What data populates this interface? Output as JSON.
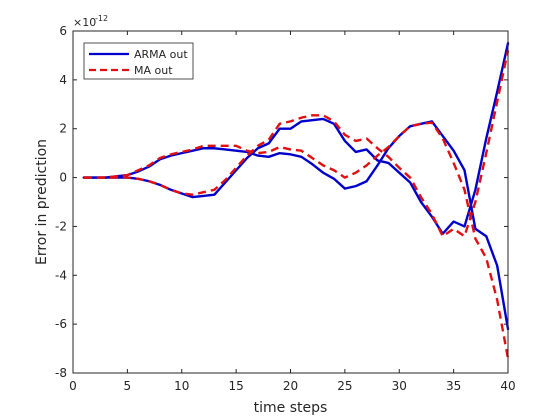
{
  "chart_data": {
    "type": "line",
    "xlabel": "time steps",
    "ylabel": "Error in prediction",
    "y_multiplier": "×10",
    "y_exponent": "-12",
    "xlim": [
      0,
      40
    ],
    "ylim": [
      -8,
      6
    ],
    "x_ticks": [
      0,
      5,
      10,
      15,
      20,
      25,
      30,
      35,
      40
    ],
    "y_ticks": [
      -8,
      -6,
      -4,
      -2,
      0,
      2,
      4,
      6
    ],
    "legend": {
      "placement": "top-left",
      "entries": [
        "ARMA out",
        "MA out"
      ]
    },
    "series": [
      {
        "name": "ARMA out",
        "color": "#0000cc",
        "style": "solid",
        "paths": [
          {
            "x": [
              1,
              2,
              3,
              4,
              5,
              6,
              7,
              8,
              9,
              10,
              11,
              12,
              13,
              14,
              15,
              16,
              17,
              18,
              19,
              20,
              21,
              22,
              23,
              24,
              25,
              26,
              27,
              28,
              29,
              30,
              31,
              32,
              33,
              34,
              35,
              36,
              37,
              38,
              39,
              40
            ],
            "y": [
              0,
              0,
              0,
              0.05,
              0.1,
              0.25,
              0.45,
              0.75,
              0.9,
              1.0,
              1.1,
              1.2,
              1.2,
              1.15,
              1.1,
              1.05,
              0.9,
              0.85,
              1.0,
              0.95,
              0.85,
              0.55,
              0.2,
              -0.05,
              -0.45,
              -0.35,
              -0.15,
              0.5,
              1.2,
              1.7,
              2.1,
              2.2,
              2.3,
              1.7,
              1.1,
              0.3,
              -2.1,
              -2.4,
              -3.6,
              -6.2
            ]
          },
          {
            "x": [
              1,
              2,
              3,
              4,
              5,
              6,
              7,
              8,
              9,
              10,
              11,
              12,
              13,
              14,
              15,
              16,
              17,
              18,
              19,
              20,
              21,
              22,
              23,
              24,
              25,
              26,
              27,
              28,
              29,
              30,
              31,
              32,
              33,
              34,
              35,
              36,
              37,
              38,
              39,
              40
            ],
            "y": [
              0,
              0,
              0,
              0,
              0,
              -0.05,
              -0.15,
              -0.3,
              -0.5,
              -0.65,
              -0.8,
              -0.75,
              -0.7,
              -0.2,
              0.3,
              0.8,
              1.2,
              1.4,
              2.0,
              2.0,
              2.3,
              2.35,
              2.4,
              2.2,
              1.5,
              1.05,
              1.15,
              0.7,
              0.6,
              0.2,
              -0.2,
              -1.0,
              -1.6,
              -2.3,
              -1.8,
              -2.0,
              -0.5,
              1.6,
              3.5,
              5.5
            ]
          }
        ]
      },
      {
        "name": "MA out",
        "color": "#e01010",
        "style": "dashed",
        "paths": [
          {
            "x": [
              1,
              2,
              3,
              4,
              5,
              6,
              7,
              8,
              9,
              10,
              11,
              12,
              13,
              14,
              15,
              16,
              17,
              18,
              19,
              20,
              21,
              22,
              23,
              24,
              25,
              26,
              27,
              28,
              29,
              30,
              31,
              32,
              33,
              34,
              35,
              36,
              37,
              38,
              39,
              40
            ],
            "y": [
              0,
              0,
              0,
              0.05,
              0.1,
              0.3,
              0.5,
              0.8,
              0.95,
              1.05,
              1.15,
              1.3,
              1.3,
              1.3,
              1.3,
              1.1,
              1.0,
              1.05,
              1.25,
              1.15,
              1.1,
              0.8,
              0.5,
              0.3,
              0,
              0.2,
              0.5,
              0.9,
              1.25,
              1.7,
              2.1,
              2.2,
              2.25,
              1.6,
              0.6,
              -0.5,
              -2.5,
              -3.3,
              -5.0,
              -7.4
            ]
          },
          {
            "x": [
              1,
              2,
              3,
              4,
              5,
              6,
              7,
              8,
              9,
              10,
              11,
              12,
              13,
              14,
              15,
              16,
              17,
              18,
              19,
              20,
              21,
              22,
              23,
              24,
              25,
              26,
              27,
              28,
              29,
              30,
              31,
              32,
              33,
              34,
              35,
              36,
              37,
              38,
              39,
              40
            ],
            "y": [
              0,
              0,
              0,
              0,
              0,
              -0.05,
              -0.15,
              -0.3,
              -0.5,
              -0.65,
              -0.7,
              -0.6,
              -0.5,
              -0.1,
              0.4,
              0.9,
              1.3,
              1.55,
              2.2,
              2.3,
              2.45,
              2.55,
              2.55,
              2.3,
              1.75,
              1.5,
              1.6,
              1.2,
              0.85,
              0.4,
              0,
              -0.8,
              -1.5,
              -2.4,
              -2.1,
              -2.4,
              -1.0,
              1.0,
              3.1,
              5.2
            ]
          }
        ]
      }
    ]
  }
}
